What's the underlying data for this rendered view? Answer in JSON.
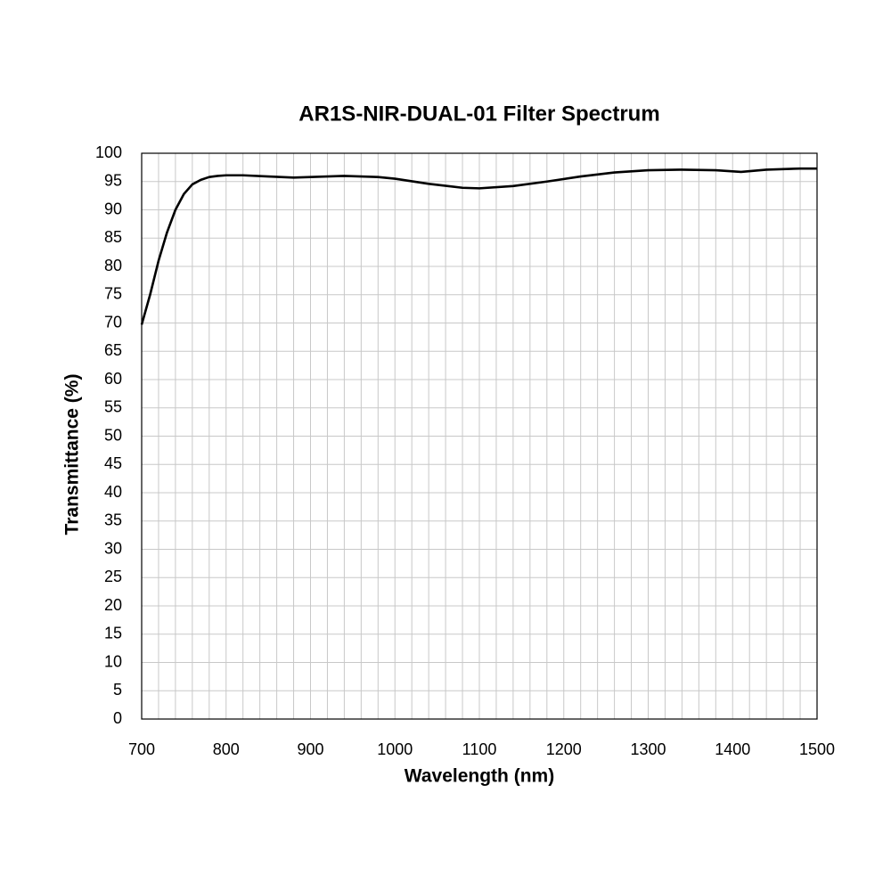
{
  "chart_data": {
    "type": "line",
    "title": "AR1S-NIR-DUAL-01 Filter Spectrum",
    "x_label": "Wavelength (nm)",
    "y_label": "Transmittance (%)",
    "x": [
      700,
      710,
      720,
      730,
      740,
      750,
      760,
      770,
      780,
      790,
      800,
      820,
      850,
      880,
      900,
      940,
      980,
      1000,
      1040,
      1080,
      1100,
      1140,
      1180,
      1220,
      1260,
      1300,
      1340,
      1380,
      1400,
      1410,
      1440,
      1480,
      1500
    ],
    "series": [
      {
        "color": "#000000",
        "values": [
          69.7,
          75,
          81,
          86,
          90,
          92.8,
          94.5,
          95.3,
          95.8,
          96,
          96.1,
          96.1,
          95.9,
          95.7,
          95.8,
          96,
          95.8,
          95.5,
          94.6,
          93.9,
          93.8,
          94.2,
          95,
          95.9,
          96.6,
          97,
          97.1,
          97,
          96.8,
          96.7,
          97.1,
          97.3,
          97.3
        ]
      }
    ],
    "xlim": [
      700,
      1500
    ],
    "ylim": [
      0,
      100
    ],
    "xticks": [
      700,
      800,
      900,
      1000,
      1100,
      1200,
      1300,
      1400,
      1500
    ],
    "yticks": [
      0,
      5,
      10,
      15,
      20,
      25,
      30,
      35,
      40,
      45,
      50,
      55,
      60,
      65,
      70,
      75,
      80,
      85,
      90,
      95,
      100
    ],
    "grid": true
  }
}
